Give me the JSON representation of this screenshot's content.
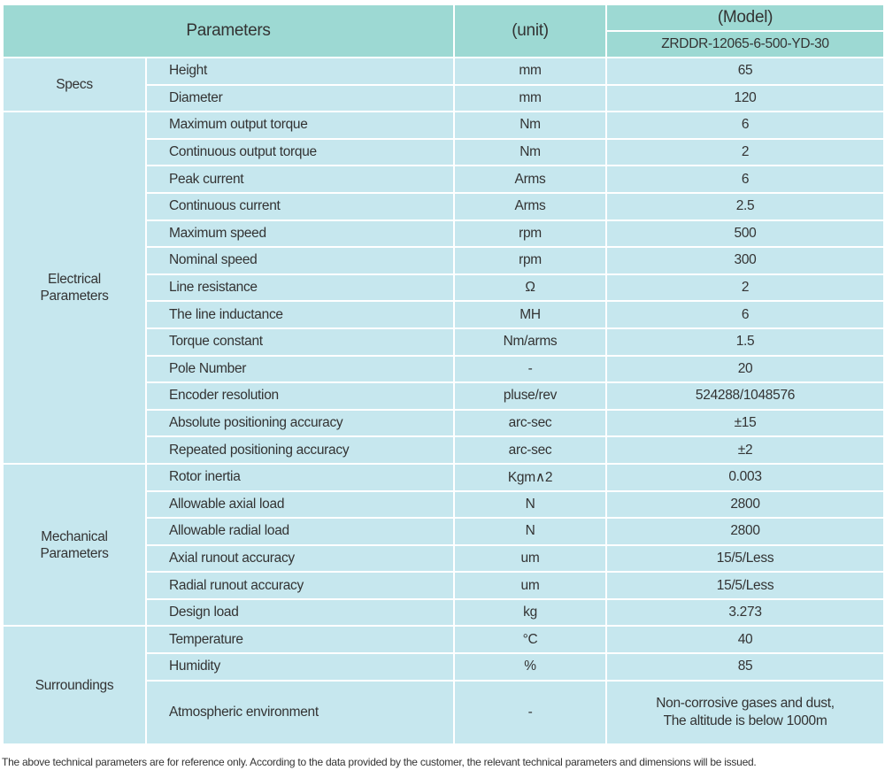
{
  "header": {
    "parameters": "Parameters",
    "unit": "(unit)",
    "model_label": "(Model)",
    "model": "ZRDDR-12065-6-500-YD-30"
  },
  "groups": [
    {
      "name": "Specs",
      "rows": [
        {
          "param": "Height",
          "unit": "mm",
          "value": "65"
        },
        {
          "param": "Diameter",
          "unit": "mm",
          "value": "120"
        }
      ]
    },
    {
      "name": "Electrical Parameters",
      "rows": [
        {
          "param": "Maximum output torque",
          "unit": "Nm",
          "value": "6"
        },
        {
          "param": "Continuous output torque",
          "unit": "Nm",
          "value": "2"
        },
        {
          "param": "Peak current",
          "unit": "Arms",
          "value": "6"
        },
        {
          "param": "Continuous current",
          "unit": "Arms",
          "value": "2.5"
        },
        {
          "param": "Maximum speed",
          "unit": "rpm",
          "value": "500"
        },
        {
          "param": "Nominal speed",
          "unit": "rpm",
          "value": "300"
        },
        {
          "param": "Line resistance",
          "unit": "Ω",
          "value": "2"
        },
        {
          "param": "The line inductance",
          "unit": "MH",
          "value": "6"
        },
        {
          "param": "Torque constant",
          "unit": "Nm/arms",
          "value": "1.5"
        },
        {
          "param": "Pole Number",
          "unit": "-",
          "value": "20"
        },
        {
          "param": "Encoder resolution",
          "unit": "pluse/rev",
          "value": "524288/1048576"
        },
        {
          "param": "Absolute positioning accuracy",
          "unit": "arc-sec",
          "value": "±15"
        },
        {
          "param": "Repeated positioning accuracy",
          "unit": "arc-sec",
          "value": "±2"
        }
      ]
    },
    {
      "name": "Mechanical Parameters",
      "rows": [
        {
          "param": "Rotor inertia",
          "unit": "Kgm∧2",
          "value": "0.003"
        },
        {
          "param": "Allowable axial load",
          "unit": "N",
          "value": "2800"
        },
        {
          "param": "Allowable radial load",
          "unit": "N",
          "value": "2800"
        },
        {
          "param": "Axial runout accuracy",
          "unit": "um",
          "value": "15/5/Less"
        },
        {
          "param": "Radial runout accuracy",
          "unit": "um",
          "value": "15/5/Less"
        },
        {
          "param": "Design load",
          "unit": "kg",
          "value": "3.273"
        }
      ]
    },
    {
      "name": "Surroundings",
      "rows": [
        {
          "param": "Temperature",
          "unit": "°C",
          "value": "40"
        },
        {
          "param": "Humidity",
          "unit": "%",
          "value": "85"
        },
        {
          "param": "Atmospheric environment",
          "unit": "-",
          "value": "Non-corrosive gases and dust,\nThe altitude is below 1000m"
        }
      ]
    }
  ],
  "note": "The above technical parameters are for reference only. According to the data provided by the customer, the relevant technical parameters and dimensions will be issued."
}
